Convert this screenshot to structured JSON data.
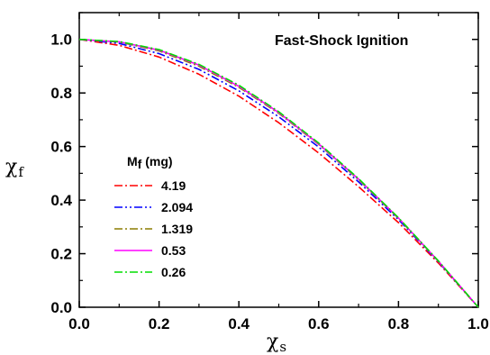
{
  "chart_data": {
    "type": "line",
    "title": "Fast-Shock Ignition",
    "xlabel": {
      "symbol": "χ",
      "sub": "s"
    },
    "ylabel": {
      "symbol": "χ",
      "sub": "f"
    },
    "xlim": [
      0.0,
      1.0
    ],
    "ylim": [
      0.0,
      1.1
    ],
    "xticks": [
      0.0,
      0.2,
      0.4,
      0.6,
      0.8,
      1.0
    ],
    "yticks": [
      0.0,
      0.2,
      0.4,
      0.6,
      0.8,
      1.0
    ],
    "xtick_labels": [
      "0.0",
      "0.2",
      "0.4",
      "0.6",
      "0.8",
      "1.0"
    ],
    "ytick_labels": [
      "0.0",
      "0.2",
      "0.4",
      "0.6",
      "0.8",
      "1.0"
    ],
    "grid": false,
    "legend": {
      "title_main": "M",
      "title_sub": "f",
      "title_suffix": " (mg)",
      "placement": "center-left"
    },
    "x": [
      0.0,
      0.1,
      0.2,
      0.3,
      0.4,
      0.5,
      0.6,
      0.7,
      0.8,
      0.9,
      1.0
    ],
    "series": [
      {
        "name": "4.19",
        "color": "#ff0000",
        "dash": "dashdot",
        "values": [
          1.0,
          0.978,
          0.934,
          0.87,
          0.788,
          0.689,
          0.576,
          0.45,
          0.316,
          0.165,
          0.0
        ]
      },
      {
        "name": "2.094",
        "color": "#0000ff",
        "dash": "dashdotdot",
        "values": [
          1.0,
          0.985,
          0.947,
          0.888,
          0.808,
          0.711,
          0.598,
          0.468,
          0.327,
          0.17,
          0.0
        ]
      },
      {
        "name": "1.319",
        "color": "#8b7d00",
        "dash": "dashdot",
        "values": [
          1.0,
          0.99,
          0.957,
          0.9,
          0.821,
          0.724,
          0.608,
          0.476,
          0.332,
          0.172,
          0.0
        ]
      },
      {
        "name": "0.53",
        "color": "#ff00ff",
        "dash": "solid",
        "values": [
          1.0,
          0.991,
          0.96,
          0.904,
          0.825,
          0.727,
          0.61,
          0.478,
          0.333,
          0.172,
          0.0
        ]
      },
      {
        "name": "0.26",
        "color": "#00dd00",
        "dash": "dashdot",
        "values": [
          1.0,
          0.992,
          0.962,
          0.907,
          0.829,
          0.73,
          0.613,
          0.48,
          0.334,
          0.173,
          0.0
        ]
      }
    ]
  }
}
